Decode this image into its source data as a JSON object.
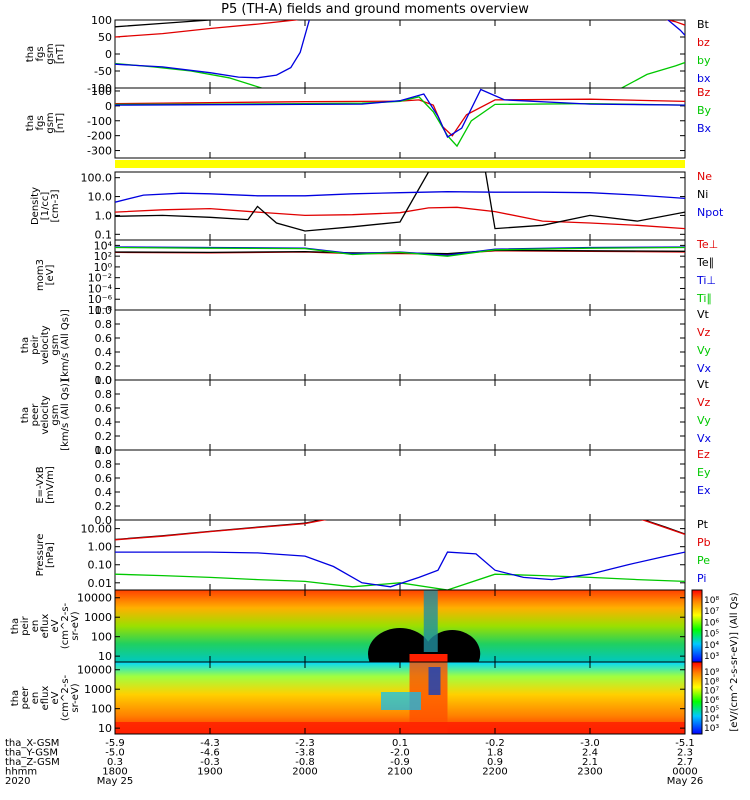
{
  "title": "P5 (TH-A) fields and ground moments overview",
  "colors": {
    "black": "#000000",
    "red": "#e00000",
    "green": "#00c800",
    "blue": "#0000e0",
    "yellow": "#ffff00"
  },
  "x_axis": {
    "range": [
      "1800",
      "0000"
    ],
    "tick_hhmm": [
      "1800",
      "1900",
      "2000",
      "2100",
      "2200",
      "2300",
      "0000"
    ],
    "row_labels": [
      "tha_X-GSM",
      "tha_Y-GSM",
      "tha_Z-GSM",
      "hhmm",
      "2020"
    ],
    "rows": [
      [
        "-5.9",
        "-4.3",
        "-2.3",
        "0.1",
        "-0.2",
        "-3.0",
        "-5.1"
      ],
      [
        "-5.0",
        "-4.6",
        "-3.8",
        "-2.0",
        "1.8",
        "2.4",
        "2.3"
      ],
      [
        "0.3",
        "-0.3",
        "-0.8",
        "-0.9",
        "0.9",
        "2.1",
        "2.7"
      ],
      [
        "1800",
        "1900",
        "2000",
        "2100",
        "2200",
        "2300",
        "0000"
      ],
      [
        "May 25",
        "",
        "",
        "",
        "",
        "",
        "May 26"
      ]
    ]
  },
  "chart_data": [
    {
      "type": "line",
      "ylabel": [
        "tha",
        "fgs",
        "gsm",
        "[nT]"
      ],
      "ylim": [
        -100,
        100
      ],
      "yticks": [
        "100",
        "50",
        "0",
        "-50",
        "-100"
      ],
      "legend": [
        {
          "name": "Bt",
          "color": "#000000"
        },
        {
          "name": "bz",
          "color": "#e00000"
        },
        {
          "name": "by",
          "color": "#00c800"
        },
        {
          "name": "bx",
          "color": "#0000e0"
        }
      ],
      "series": [
        {
          "name": "Bt",
          "color": "#000000",
          "x": [
            18.0,
            18.5,
            19.0,
            19.5,
            20.0,
            20.3,
            23.5,
            23.8,
            24.0
          ],
          "y": [
            80,
            90,
            100,
            110,
            120,
            130,
            130,
            110,
            100
          ]
        },
        {
          "name": "bz",
          "color": "#e00000",
          "x": [
            18.0,
            18.5,
            19.0,
            19.5,
            19.9,
            20.2,
            23.6,
            23.9,
            24.0
          ],
          "y": [
            50,
            60,
            75,
            88,
            100,
            115,
            115,
            95,
            85
          ]
        },
        {
          "name": "by",
          "color": "#00c800",
          "x": [
            18.0,
            18.4,
            18.8,
            19.2,
            19.6,
            23.3,
            23.6,
            23.9,
            24.0
          ],
          "y": [
            -28,
            -38,
            -50,
            -70,
            -105,
            -105,
            -60,
            -35,
            -25
          ]
        },
        {
          "name": "bx",
          "color": "#0000e0",
          "x": [
            18.0,
            18.5,
            19.0,
            19.3,
            19.5,
            19.7,
            19.85,
            19.95,
            20.05,
            23.8,
            23.95,
            24.0
          ],
          "y": [
            -30,
            -38,
            -55,
            -68,
            -70,
            -62,
            -40,
            5,
            105,
            105,
            70,
            55
          ]
        }
      ]
    },
    {
      "type": "line",
      "ylabel": [
        "tha",
        "fgs",
        "gsm",
        "[nT]"
      ],
      "ylim": [
        -350,
        120
      ],
      "yticks": [
        "100",
        "0",
        "-100",
        "-200",
        "-300"
      ],
      "legend": [
        {
          "name": "Bz",
          "color": "#e00000"
        },
        {
          "name": "By",
          "color": "#00c800"
        },
        {
          "name": "Bx",
          "color": "#0000e0"
        }
      ],
      "series": [
        {
          "name": "Bz",
          "color": "#e00000",
          "x": [
            18.0,
            19.0,
            20.0,
            20.6,
            21.0,
            21.2,
            21.35,
            21.45,
            21.55,
            21.7,
            22.0,
            23.0,
            24.0
          ],
          "y": [
            15,
            22,
            28,
            30,
            32,
            40,
            5,
            -140,
            -200,
            -60,
            40,
            45,
            30
          ]
        },
        {
          "name": "By",
          "color": "#00c800",
          "x": [
            18.0,
            19.0,
            20.0,
            20.6,
            21.0,
            21.2,
            21.35,
            21.5,
            21.6,
            21.75,
            22.0,
            23.0,
            24.0
          ],
          "y": [
            10,
            12,
            15,
            18,
            30,
            60,
            -40,
            -200,
            -270,
            -100,
            10,
            15,
            5
          ]
        },
        {
          "name": "Bx",
          "color": "#0000e0",
          "x": [
            18.0,
            19.0,
            20.0,
            20.6,
            21.0,
            21.25,
            21.4,
            21.5,
            21.65,
            21.85,
            22.1,
            23.0,
            24.0
          ],
          "y": [
            5,
            8,
            10,
            12,
            35,
            80,
            -70,
            -210,
            -150,
            110,
            40,
            12,
            5
          ]
        }
      ]
    },
    {
      "type": "line",
      "ylabel": [
        "Density",
        "[1/cc]",
        "[cm-3]"
      ],
      "scale": "log",
      "ylim": [
        0.05,
        200
      ],
      "yticks": [
        "100.0",
        "10.0",
        "1.0",
        "0.1"
      ],
      "legend": [
        {
          "name": "Ne",
          "color": "#e00000"
        },
        {
          "name": "Ni",
          "color": "#000000"
        },
        {
          "name": "Npot",
          "color": "#0000e0"
        }
      ],
      "series": [
        {
          "name": "Ne",
          "color": "#e00000",
          "x": [
            18.0,
            18.5,
            19.0,
            19.5,
            20.0,
            20.5,
            21.0,
            21.3,
            21.6,
            22.0,
            22.5,
            23.0,
            23.5,
            24.0
          ],
          "y": [
            1.5,
            2.0,
            2.3,
            1.5,
            1.0,
            1.1,
            1.4,
            2.5,
            2.7,
            1.6,
            0.5,
            0.4,
            0.3,
            0.2
          ]
        },
        {
          "name": "Ni",
          "color": "#000000",
          "x": [
            18.0,
            18.5,
            19.0,
            19.4,
            19.5,
            19.7,
            20.0,
            20.5,
            21.0,
            21.3,
            21.6,
            21.9,
            22.0,
            22.5,
            23.0,
            23.5,
            24.0
          ],
          "y": [
            0.9,
            1.0,
            0.8,
            0.6,
            3.0,
            0.4,
            0.15,
            0.25,
            0.45,
            200,
            200,
            200,
            0.2,
            0.3,
            1.0,
            0.5,
            1.5
          ]
        },
        {
          "name": "Npot",
          "color": "#0000e0",
          "x": [
            18.0,
            18.3,
            18.7,
            19.0,
            19.5,
            20.0,
            20.5,
            21.0,
            21.5,
            22.0,
            22.5,
            23.0,
            23.5,
            24.0
          ],
          "y": [
            5,
            12,
            15,
            14,
            11,
            11,
            14,
            16,
            18,
            17,
            17,
            16,
            12,
            8
          ]
        }
      ]
    },
    {
      "type": "line",
      "ylabel": [
        "mom3",
        "[eV]"
      ],
      "scale": "log",
      "ylim": [
        1e-08,
        100000
      ],
      "yticks": [
        "10⁴",
        "10²",
        "10⁰",
        "10⁻²",
        "10⁻⁴",
        "10⁻⁶",
        "10⁻⁸"
      ],
      "legend": [
        {
          "name": "Te⊥",
          "color": "#e00000"
        },
        {
          "name": "Te∥",
          "color": "#000000"
        },
        {
          "name": "Ti⊥",
          "color": "#0000e0"
        },
        {
          "name": "Ti∥",
          "color": "#00c800"
        }
      ],
      "series": [
        {
          "name": "Te⊥",
          "color": "#e00000",
          "x": [
            18.0,
            19.0,
            20.0,
            20.5,
            21.0,
            21.5,
            22.0,
            23.0,
            24.0
          ],
          "y": [
            500,
            400,
            600,
            300,
            300,
            250,
            1000,
            800,
            600
          ]
        },
        {
          "name": "Te∥",
          "color": "#000000",
          "x": [
            18.0,
            19.0,
            20.0,
            20.5,
            21.0,
            21.5,
            22.0,
            23.0,
            24.0
          ],
          "y": [
            600,
            500,
            700,
            400,
            400,
            300,
            1200,
            1000,
            800
          ]
        },
        {
          "name": "Ti⊥",
          "color": "#0000e0",
          "x": [
            18.0,
            19.0,
            20.0,
            20.5,
            21.0,
            21.5,
            22.0,
            23.0,
            24.0
          ],
          "y": [
            5000,
            4000,
            3000,
            300,
            600,
            150,
            2000,
            4000,
            5000
          ]
        },
        {
          "name": "Ti∥",
          "color": "#00c800",
          "x": [
            18.0,
            19.0,
            20.0,
            20.5,
            21.0,
            21.5,
            22.0,
            23.0,
            24.0
          ],
          "y": [
            4000,
            3000,
            2500,
            200,
            500,
            100,
            1500,
            3000,
            4000
          ]
        }
      ]
    },
    {
      "type": "line",
      "ylabel": [
        "tha",
        "peir",
        "velocity",
        "gsm",
        "[km/s (All Qs)]"
      ],
      "ylim": [
        0,
        1
      ],
      "yticks": [
        "1.0",
        "0.8",
        "0.6",
        "0.4",
        "0.2",
        "0.0"
      ],
      "legend": [
        {
          "name": "Vt",
          "color": "#000000"
        },
        {
          "name": "Vz",
          "color": "#e00000"
        },
        {
          "name": "Vy",
          "color": "#00c800"
        },
        {
          "name": "Vx",
          "color": "#0000e0"
        }
      ],
      "series": []
    },
    {
      "type": "line",
      "ylabel": [
        "tha",
        "peer",
        "velocity",
        "gsm",
        "[km/s (All Qs)]"
      ],
      "ylim": [
        0,
        1
      ],
      "yticks": [
        "1.0",
        "0.8",
        "0.6",
        "0.4",
        "0.2",
        "0.0"
      ],
      "legend": [
        {
          "name": "Vt",
          "color": "#000000"
        },
        {
          "name": "Vz",
          "color": "#e00000"
        },
        {
          "name": "Vy",
          "color": "#00c800"
        },
        {
          "name": "Vx",
          "color": "#0000e0"
        }
      ],
      "series": []
    },
    {
      "type": "line",
      "ylabel": [
        "E=-VxB",
        "[mV/m]"
      ],
      "ylim": [
        0,
        1
      ],
      "yticks": [
        "1.0",
        "0.8",
        "0.6",
        "0.4",
        "0.2",
        "0.0"
      ],
      "legend": [
        {
          "name": "Ez",
          "color": "#e00000"
        },
        {
          "name": "Ey",
          "color": "#00c800"
        },
        {
          "name": "Ex",
          "color": "#0000e0"
        }
      ],
      "series": []
    },
    {
      "type": "line",
      "ylabel": [
        "Pressure",
        "[nPa]"
      ],
      "scale": "log",
      "ylim": [
        0.004,
        30
      ],
      "yticks": [
        "10.00",
        "1.00",
        "0.10",
        "0.01"
      ],
      "legend": [
        {
          "name": "Pt",
          "color": "#000000"
        },
        {
          "name": "Pb",
          "color": "#e00000"
        },
        {
          "name": "Pe",
          "color": "#00c800"
        },
        {
          "name": "Pi",
          "color": "#0000e0"
        }
      ],
      "series": [
        {
          "name": "Pt",
          "color": "#000000",
          "x": [
            18.0,
            18.5,
            19.0,
            19.5,
            20.0,
            20.3,
            23.5,
            23.8,
            24.0
          ],
          "y": [
            2.5,
            4.0,
            7.0,
            12.0,
            20.0,
            40.0,
            40.0,
            12.0,
            5.0
          ]
        },
        {
          "name": "Pb",
          "color": "#e00000",
          "x": [
            18.0,
            18.5,
            19.0,
            19.5,
            20.0,
            20.3,
            23.5,
            23.8,
            24.0
          ],
          "y": [
            2.4,
            3.8,
            6.8,
            11.5,
            19.0,
            38.0,
            38.0,
            11.0,
            4.8
          ]
        },
        {
          "name": "Pe",
          "color": "#00c800",
          "x": [
            18.0,
            18.5,
            19.0,
            19.5,
            20.0,
            20.5,
            21.0,
            21.5,
            22.0,
            22.5,
            23.0,
            23.5,
            24.0
          ],
          "y": [
            0.03,
            0.025,
            0.02,
            0.015,
            0.012,
            0.006,
            0.01,
            0.004,
            0.03,
            0.025,
            0.02,
            0.015,
            0.012
          ]
        },
        {
          "name": "Pi",
          "color": "#0000e0",
          "x": [
            18.0,
            18.5,
            19.0,
            19.5,
            20.0,
            20.3,
            20.6,
            20.9,
            21.2,
            21.4,
            21.5,
            21.8,
            22.0,
            22.3,
            22.6,
            23.0,
            23.4,
            23.8,
            24.0
          ],
          "y": [
            0.5,
            0.5,
            0.5,
            0.45,
            0.3,
            0.08,
            0.01,
            0.006,
            0.02,
            0.05,
            0.5,
            0.4,
            0.05,
            0.02,
            0.015,
            0.03,
            0.1,
            0.3,
            0.5
          ]
        }
      ]
    },
    {
      "type": "heatmap",
      "ylabel": [
        "tha",
        "peir",
        "en",
        "eflux",
        "eV",
        "(cm^2-s-",
        "sr-eV)"
      ],
      "scale": "log",
      "ylim": [
        5,
        25000
      ],
      "yticks": [
        "10000",
        "1000",
        "100",
        "10"
      ],
      "colorbar_ticks": [
        "10⁸",
        "10⁷",
        "10⁶",
        "10⁵",
        "10⁴",
        "10³"
      ]
    },
    {
      "type": "heatmap",
      "ylabel": [
        "tha",
        "peer",
        "en",
        "eflux",
        "eV",
        "(cm^2-s-",
        "sr-eV)"
      ],
      "scale": "log",
      "ylim": [
        5,
        25000
      ],
      "yticks": [
        "10000",
        "1000",
        "100",
        "10"
      ],
      "colorbar_ticks": [
        "10⁹",
        "10⁸",
        "10⁷",
        "10⁶",
        "10⁵",
        "10⁴",
        "10³"
      ]
    }
  ],
  "colorbar_label": "[eV/(cm^2-s-sr-eV)] (All Qs)"
}
